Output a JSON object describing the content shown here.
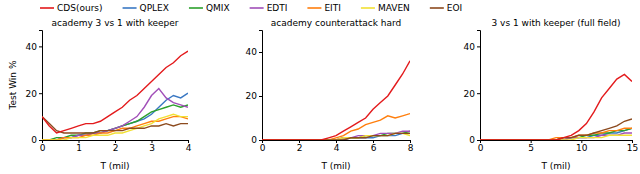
{
  "chart_data": [
    {
      "type": "line",
      "title": "academy 3 vs 1 with keeper",
      "xlabel": "T (mil)",
      "ylabel": "Test Win %",
      "legend": "top",
      "x": [
        0,
        0.2,
        0.4,
        0.6,
        0.8,
        1,
        1.2,
        1.4,
        1.6,
        1.8,
        2,
        2.2,
        2.4,
        2.6,
        2.8,
        3,
        3.2,
        3.4,
        3.6,
        3.8,
        4
      ],
      "xlim": [
        0,
        4
      ],
      "xticks": [
        0,
        1,
        2,
        3,
        4
      ],
      "ylim": [
        0,
        47
      ],
      "yticks": [
        0,
        20,
        40
      ],
      "series": [
        {
          "name": "CDS(ours)",
          "color": "#e31a1c",
          "values": [
            10,
            6,
            3,
            4,
            5,
            6,
            7,
            7,
            8,
            10,
            12,
            14,
            17,
            19,
            22,
            25,
            28,
            31,
            33,
            36,
            38
          ]
        },
        {
          "name": "QPLEX",
          "color": "#3a78c3",
          "values": [
            0,
            0,
            0,
            1,
            1,
            2,
            2,
            3,
            3,
            4,
            5,
            6,
            7,
            8,
            9,
            11,
            14,
            17,
            19,
            18,
            20
          ]
        },
        {
          "name": "QMIX",
          "color": "#2ca02c",
          "values": [
            0,
            0,
            1,
            1,
            2,
            2,
            3,
            3,
            4,
            4,
            5,
            6,
            7,
            8,
            10,
            12,
            13,
            14,
            15,
            14,
            15
          ]
        },
        {
          "name": "EDTI",
          "color": "#a14fb8",
          "values": [
            0,
            0,
            0,
            1,
            1,
            2,
            2,
            3,
            3,
            4,
            5,
            6,
            8,
            10,
            14,
            19,
            22,
            18,
            16,
            15,
            14
          ]
        },
        {
          "name": "EITI",
          "color": "#ff7f0e",
          "values": [
            0,
            0,
            0,
            1,
            1,
            1,
            2,
            2,
            3,
            3,
            4,
            5,
            5,
            6,
            7,
            8,
            8,
            9,
            10,
            10,
            9
          ]
        },
        {
          "name": "MAVEN",
          "color": "#f2e034",
          "values": [
            0,
            0,
            0,
            0,
            1,
            1,
            1,
            2,
            2,
            2,
            3,
            3,
            4,
            5,
            6,
            7,
            9,
            10,
            11,
            10,
            10
          ]
        },
        {
          "name": "EOI",
          "color": "#8c4a1e",
          "values": [
            10,
            7,
            4,
            3,
            3,
            3,
            3,
            3,
            4,
            4,
            4,
            4,
            5,
            5,
            5,
            6,
            6,
            7,
            6,
            7,
            7
          ]
        }
      ]
    },
    {
      "type": "line",
      "title": "academy counterattack hard",
      "xlabel": "T (mil)",
      "x": [
        0,
        0.4,
        0.8,
        1.2,
        1.6,
        2,
        2.4,
        2.8,
        3.2,
        3.6,
        4,
        4.4,
        4.8,
        5.2,
        5.6,
        6,
        6.4,
        6.8,
        7.2,
        7.6,
        8
      ],
      "xlim": [
        0,
        8
      ],
      "xticks": [
        0,
        2,
        4,
        6,
        8
      ],
      "ylim": [
        0,
        50
      ],
      "yticks": [
        0,
        20,
        40
      ],
      "series": [
        {
          "name": "CDS(ours)",
          "color": "#e31a1c",
          "values": [
            0,
            0,
            0,
            0,
            0,
            0,
            0,
            0,
            0,
            1,
            2,
            4,
            6,
            8,
            10,
            14,
            17,
            20,
            25,
            30,
            36
          ]
        },
        {
          "name": "QPLEX",
          "color": "#3a78c3",
          "values": [
            0,
            0,
            0,
            0,
            0,
            0,
            0,
            0,
            0,
            0,
            0,
            0,
            1,
            1,
            1,
            1,
            2,
            2,
            2,
            3,
            3
          ]
        },
        {
          "name": "QMIX",
          "color": "#2ca02c",
          "values": [
            0,
            0,
            0,
            0,
            0,
            0,
            0,
            0,
            0,
            0,
            0,
            1,
            1,
            1,
            2,
            2,
            2,
            3,
            3,
            3,
            4
          ]
        },
        {
          "name": "EDTI",
          "color": "#a14fb8",
          "values": [
            0,
            0,
            0,
            0,
            0,
            0,
            0,
            0,
            0,
            0,
            0,
            1,
            1,
            2,
            2,
            2,
            3,
            3,
            3,
            4,
            4
          ]
        },
        {
          "name": "EITI",
          "color": "#ff7f0e",
          "values": [
            0,
            0,
            0,
            0,
            0,
            0,
            0,
            0,
            0,
            0,
            1,
            2,
            4,
            5,
            7,
            8,
            9,
            11,
            10,
            11,
            12
          ]
        },
        {
          "name": "MAVEN",
          "color": "#f2e034",
          "values": [
            0,
            0,
            0,
            0,
            0,
            0,
            0,
            0,
            0,
            0,
            0,
            1,
            1,
            1,
            2,
            2,
            2,
            2,
            3,
            3,
            2
          ]
        },
        {
          "name": "EOI",
          "color": "#8c4a1e",
          "values": [
            0,
            0,
            0,
            0,
            0,
            0,
            0,
            0,
            0,
            0,
            0,
            0,
            1,
            1,
            1,
            2,
            2,
            2,
            3,
            3,
            3
          ]
        }
      ]
    },
    {
      "type": "line",
      "title": "3 vs 1 with keeper (full field)",
      "xlabel": "T (mil)",
      "x": [
        0,
        0.75,
        1.5,
        2.25,
        3,
        3.75,
        4.5,
        5.25,
        6,
        6.75,
        7.5,
        8.25,
        9,
        9.75,
        10.5,
        11.25,
        12,
        12.75,
        13.5,
        14.25,
        15
      ],
      "xlim": [
        0,
        15
      ],
      "xticks": [
        0,
        5,
        10,
        15
      ],
      "ylim": [
        0,
        47
      ],
      "yticks": [
        0,
        20,
        40
      ],
      "series": [
        {
          "name": "CDS(ours)",
          "color": "#e31a1c",
          "values": [
            0,
            0,
            0,
            0,
            0,
            0,
            0,
            0,
            0,
            0,
            0,
            1,
            2,
            4,
            7,
            12,
            18,
            22,
            26,
            28,
            25
          ]
        },
        {
          "name": "QPLEX",
          "color": "#3a78c3",
          "values": [
            0,
            0,
            0,
            0,
            0,
            0,
            0,
            0,
            0,
            0,
            0,
            0,
            1,
            1,
            1,
            2,
            2,
            3,
            3,
            4,
            5
          ]
        },
        {
          "name": "QMIX",
          "color": "#2ca02c",
          "values": [
            0,
            0,
            0,
            0,
            0,
            0,
            0,
            0,
            0,
            0,
            0,
            1,
            1,
            1,
            2,
            2,
            3,
            3,
            4,
            4,
            5
          ]
        },
        {
          "name": "EDTI",
          "color": "#a14fb8",
          "values": [
            0,
            0,
            0,
            0,
            0,
            0,
            0,
            0,
            0,
            0,
            0,
            0,
            1,
            1,
            1,
            1,
            2,
            2,
            2,
            3,
            3
          ]
        },
        {
          "name": "EITI",
          "color": "#ff7f0e",
          "values": [
            0,
            0,
            0,
            0,
            0,
            0,
            0,
            0,
            0,
            0,
            1,
            1,
            1,
            2,
            2,
            3,
            3,
            4,
            4,
            5,
            5
          ]
        },
        {
          "name": "MAVEN",
          "color": "#f2e034",
          "values": [
            0,
            0,
            0,
            0,
            0,
            0,
            0,
            0,
            0,
            0,
            0,
            0,
            0,
            1,
            1,
            1,
            1,
            2,
            2,
            2,
            2
          ]
        },
        {
          "name": "EOI",
          "color": "#8c4a1e",
          "values": [
            0,
            0,
            0,
            0,
            0,
            0,
            0,
            0,
            0,
            0,
            0,
            1,
            1,
            2,
            2,
            3,
            4,
            5,
            6,
            8,
            9
          ]
        }
      ]
    }
  ]
}
